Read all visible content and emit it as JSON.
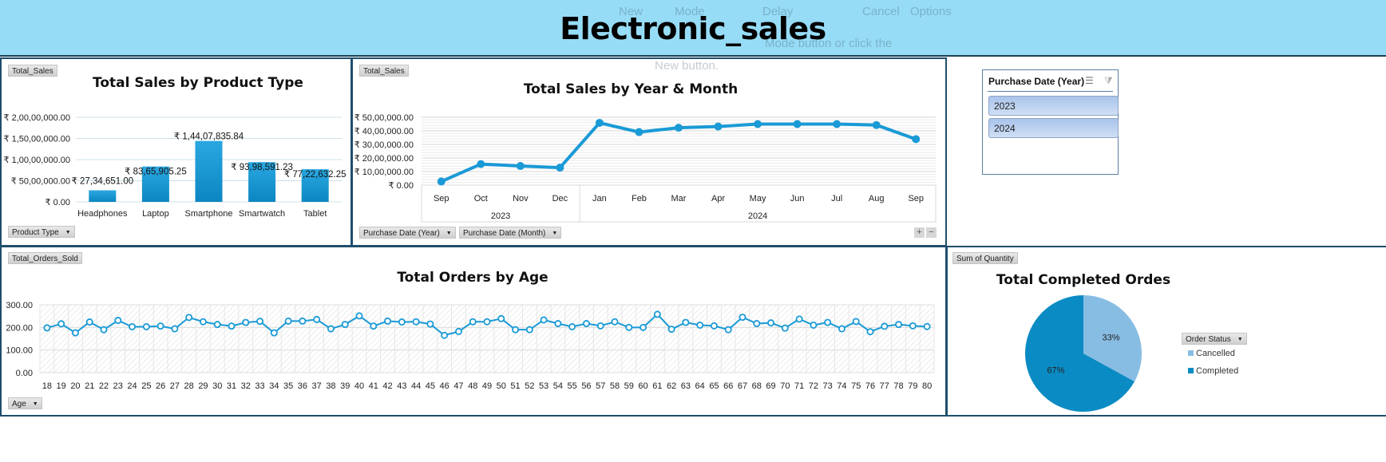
{
  "header": {
    "title": "Electronic_sales"
  },
  "overlay_ghost": {
    "items": [
      "New",
      "Mode",
      "Delay",
      "Cancel",
      "Options"
    ],
    "hint": "Mode button or click the",
    "hint2": "New button."
  },
  "colors": {
    "header_bg": "#97dcf6",
    "panel_border": "#1f4e6b",
    "series": "#1a9ad6",
    "cancelled": "#88bde3",
    "completed": "#0b8bc3"
  },
  "panel_product": {
    "value_field": "Total_Sales",
    "axis_field": "Product Type",
    "chart_data": {
      "type": "bar",
      "title": "Total Sales by Product Type",
      "categories": [
        "Headphones",
        "Laptop",
        "Smartphone",
        "Smartwatch",
        "Tablet"
      ],
      "values": [
        2734651.0,
        8365905.25,
        14407835.84,
        9398591.23,
        7722632.25
      ],
      "data_labels": [
        "₹ 27,34,651.00",
        "₹ 83,65,905.25",
        "₹ 1,44,07,835.84",
        "₹ 93,98,591.23",
        "₹ 77,22,632.25"
      ],
      "yticks": [
        "₹ 0.00",
        "₹ 50,00,000.00",
        "₹ 1,00,00,000.00",
        "₹ 1,50,00,000.00",
        "₹ 2,00,00,000.00"
      ],
      "ylim": [
        0,
        20000000
      ],
      "grid": true
    }
  },
  "panel_month": {
    "value_field": "Total_Sales",
    "axis_fields": [
      "Purchase Date (Year)",
      "Purchase Date (Month)"
    ],
    "expand_label": "+",
    "collapse_label": "−",
    "chart_data": {
      "type": "line",
      "title": "Total Sales by Year & Month",
      "categories": [
        "Sep",
        "Oct",
        "Nov",
        "Dec",
        "Jan",
        "Feb",
        "Mar",
        "Apr",
        "May",
        "Jun",
        "Jul",
        "Aug",
        "Sep"
      ],
      "groups": [
        {
          "label": "2023",
          "count": 4
        },
        {
          "label": "2024",
          "count": 9
        }
      ],
      "values": [
        270000,
        1550000,
        1410000,
        1290000,
        4590000,
        3910000,
        4230000,
        4320000,
        4500000,
        4500000,
        4500000,
        4430000,
        3390000
      ],
      "yticks": [
        "₹ 0.00",
        "₹ 10,00,000.00",
        "₹ 20,00,000.00",
        "₹ 30,00,000.00",
        "₹ 40,00,000.00",
        "₹ 50,00,000.00"
      ],
      "ylim": [
        0,
        5000000
      ],
      "grid": true
    }
  },
  "slicer": {
    "title": "Purchase Date (Year)",
    "items": [
      "2023",
      "2024"
    ],
    "multiselect_icon": "multi-select-icon",
    "clear_icon": "clear-filter-icon"
  },
  "panel_age": {
    "value_field": "Total_Orders_Sold",
    "axis_field": "Age",
    "chart_data": {
      "type": "line",
      "title": "Total Orders by Age",
      "x": [
        18,
        19,
        20,
        21,
        22,
        23,
        24,
        25,
        26,
        27,
        28,
        29,
        30,
        31,
        32,
        33,
        34,
        35,
        36,
        37,
        38,
        39,
        40,
        41,
        42,
        43,
        44,
        45,
        46,
        47,
        48,
        49,
        50,
        51,
        52,
        53,
        54,
        55,
        56,
        57,
        58,
        59,
        60,
        61,
        62,
        63,
        64,
        65,
        66,
        67,
        68,
        69,
        70,
        71,
        72,
        73,
        74,
        75,
        76,
        77,
        78,
        79,
        80
      ],
      "values": [
        198,
        216,
        176,
        224,
        190,
        231,
        203,
        203,
        206,
        194,
        244,
        225,
        213,
        206,
        222,
        227,
        176,
        228,
        228,
        235,
        194,
        213,
        251,
        206,
        228,
        224,
        225,
        215,
        165,
        182,
        225,
        225,
        239,
        190,
        190,
        233,
        217,
        203,
        217,
        207,
        225,
        200,
        200,
        258,
        192,
        222,
        210,
        207,
        190,
        245,
        217,
        220,
        197,
        237,
        210,
        222,
        194,
        226,
        181,
        205,
        213,
        207,
        204
      ],
      "yticks": [
        "0.00",
        "100.00",
        "200.00",
        "300.00"
      ],
      "ylim": [
        0,
        300
      ],
      "grid": true
    }
  },
  "panel_status": {
    "value_field": "Sum of Quantity",
    "legend_field": "Order Status",
    "chart_data": {
      "type": "pie",
      "title": "Total Completed Ordes",
      "categories": [
        "Cancelled",
        "Completed"
      ],
      "values": [
        33,
        67
      ],
      "data_labels": [
        "33%",
        "67%"
      ],
      "legend": "right"
    }
  }
}
